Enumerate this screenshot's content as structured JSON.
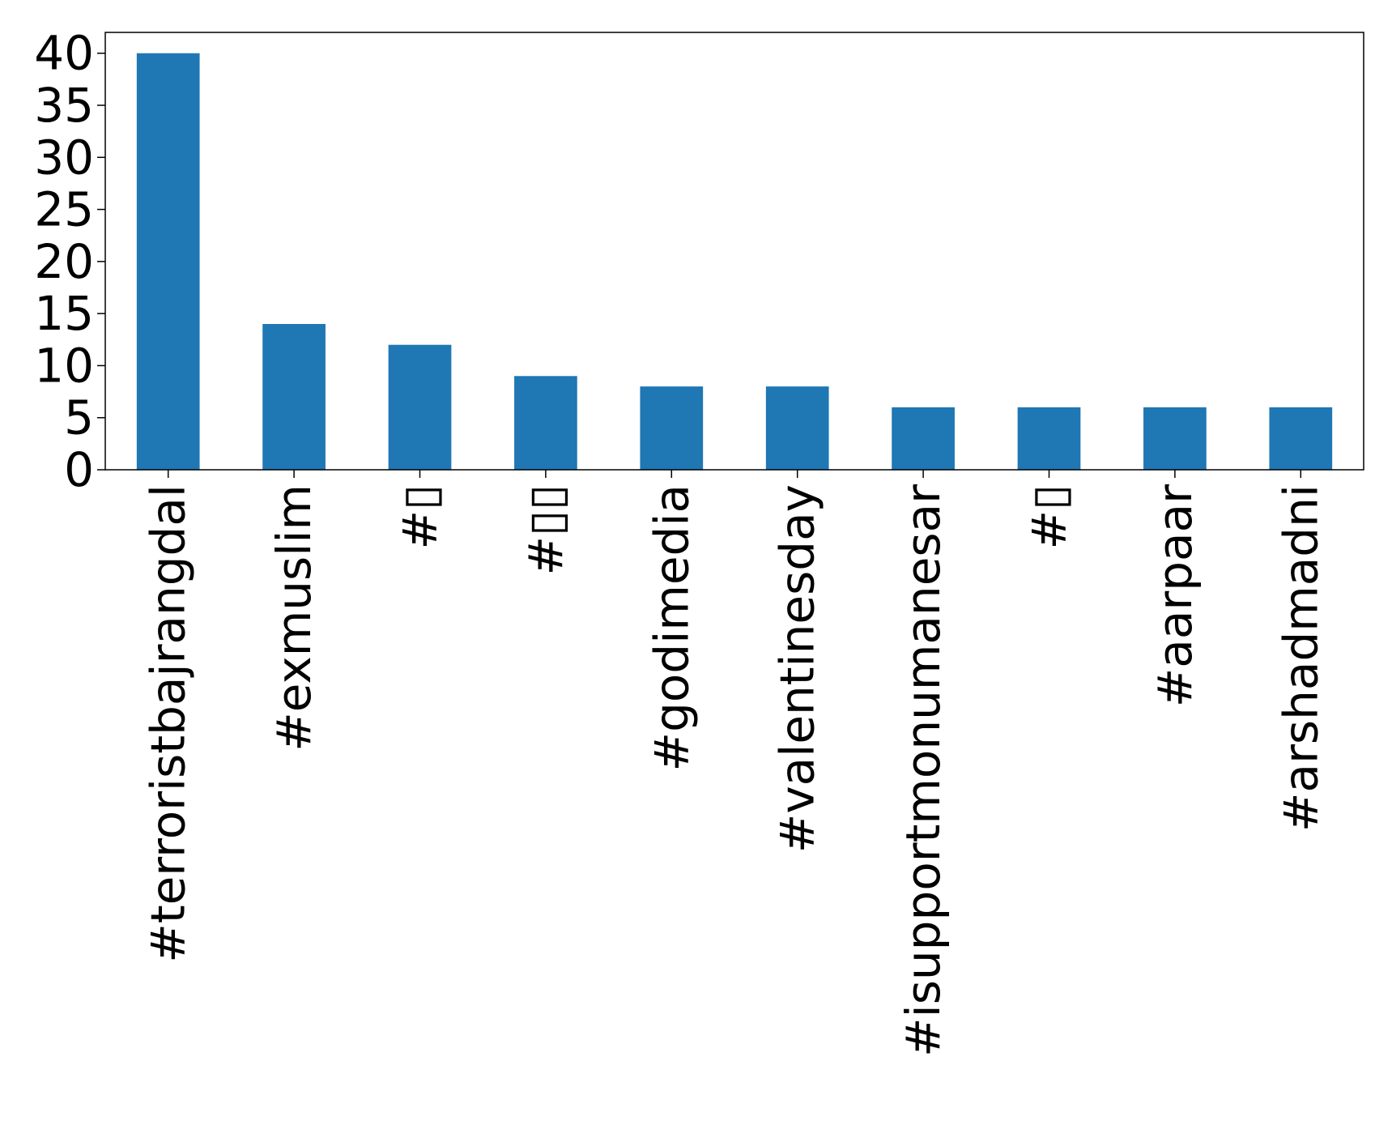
{
  "chart_data": {
    "type": "bar",
    "title": "",
    "xlabel": "",
    "ylabel": "",
    "categories": [
      "#terroristbajrangdal",
      "#exmuslim",
      "#▯",
      "#▯▯",
      "#godimedia",
      "#valentinesday",
      "#isupportmonumanesar",
      "#▯",
      "#aarpaar",
      "#arshadmadni"
    ],
    "values": [
      40,
      14,
      12,
      9,
      8,
      8,
      6,
      6,
      6,
      6
    ],
    "ylim": [
      0,
      42
    ],
    "yticks": [
      0,
      5,
      10,
      15,
      20,
      25,
      30,
      35,
      40
    ],
    "grid": false,
    "bar_color": "#1f77b4"
  }
}
